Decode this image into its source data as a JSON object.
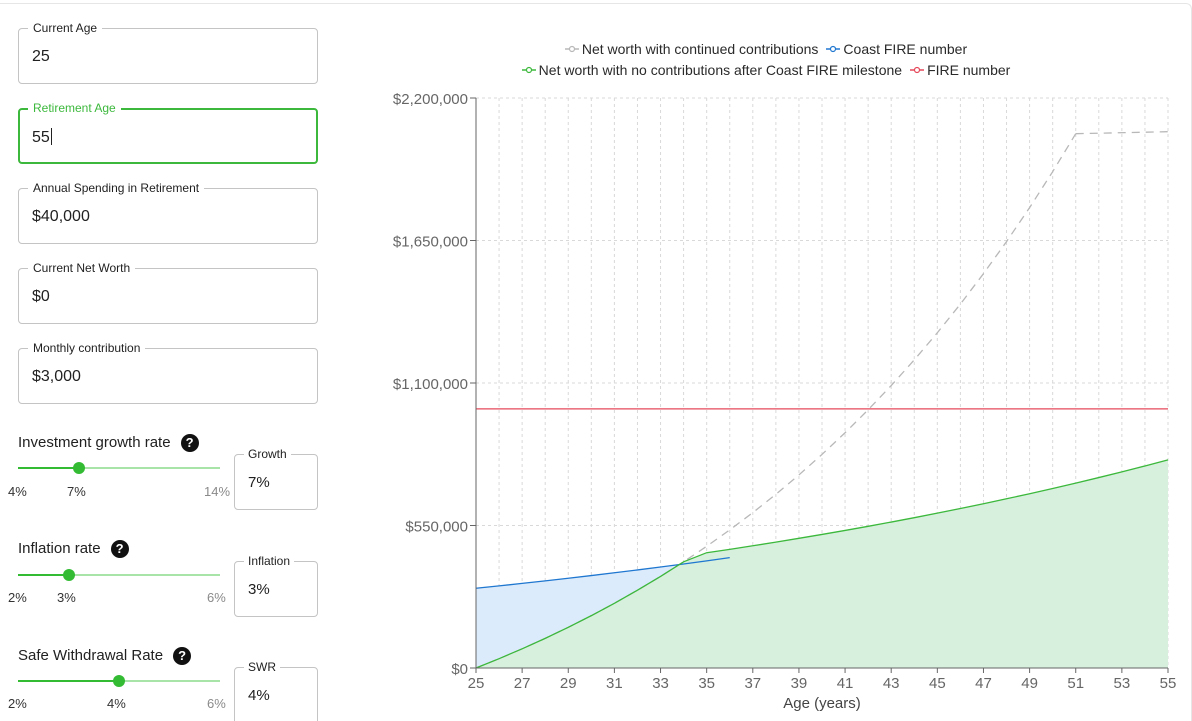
{
  "fields": {
    "current_age": {
      "label": "Current Age",
      "value": "25"
    },
    "retirement_age": {
      "label": "Retirement Age",
      "value": "55"
    },
    "annual_spending": {
      "label": "Annual Spending in Retirement",
      "value": "$40,000"
    },
    "net_worth": {
      "label": "Current Net Worth",
      "value": "$0"
    },
    "monthly_contribution": {
      "label": "Monthly contribution",
      "value": "$3,000"
    }
  },
  "sliders": {
    "growth": {
      "title": "Investment growth rate",
      "min_label": "4%",
      "value_label": "7%",
      "max_label": "14%",
      "min": 4,
      "max": 14,
      "value": 7,
      "field_label": "Growth",
      "field_value": "7%"
    },
    "inflation": {
      "title": "Inflation rate",
      "min_label": "2%",
      "value_label": "3%",
      "max_label": "6%",
      "min": 2,
      "max": 6,
      "value": 3,
      "field_label": "Inflation",
      "field_value": "3%"
    },
    "swr": {
      "title": "Safe Withdrawal Rate",
      "min_label": "2%",
      "value_label": "4%",
      "max_label": "6%",
      "min": 2,
      "max": 6,
      "value": 4,
      "field_label": "SWR",
      "field_value": "4%"
    }
  },
  "help_glyph": "?",
  "chart_data": {
    "type": "line",
    "title": "",
    "xlabel": "Age (years)",
    "ylabel": "",
    "xlim": [
      25,
      55
    ],
    "ylim": [
      0,
      2200000
    ],
    "x_ticks": [
      "25",
      "27",
      "29",
      "31",
      "33",
      "35",
      "37",
      "39",
      "41",
      "43",
      "45",
      "47",
      "49",
      "51",
      "53",
      "55"
    ],
    "y_ticks": [
      "$0",
      "$550,000",
      "$1,100,000",
      "$1,650,000",
      "$2,200,000"
    ],
    "grid": true,
    "legend_placement": "top-center",
    "x": [
      25,
      26,
      27,
      28,
      29,
      30,
      31,
      32,
      33,
      34,
      35,
      36,
      37,
      38,
      39,
      40,
      41,
      42,
      43,
      44,
      45,
      46,
      47,
      48,
      49,
      50,
      51,
      52,
      53,
      54,
      55
    ],
    "series": [
      {
        "name": "Net worth with continued contributions",
        "color": "#b8b8b8",
        "style": "dashed",
        "values": [
          0,
          36000,
          74100,
          114400,
          157000,
          202100,
          249800,
          300200,
          353500,
          410000,
          469700,
          532900,
          599700,
          670400,
          745200,
          824300,
          908000,
          996500,
          1090100,
          1189200,
          1293900,
          1404700,
          1521900,
          1645800,
          1776900,
          1915600,
          2062200,
          null,
          null,
          null,
          null
        ]
      },
      {
        "name": "Coast FIRE number",
        "color": "#1f77d0",
        "style": "solid",
        "values": [
          307700,
          317000,
          326500,
          336300,
          346400,
          356800,
          367500,
          378500,
          389800,
          401500,
          413600,
          425900,
          null,
          null,
          null,
          null,
          null,
          null,
          null,
          null,
          null,
          null,
          null,
          null,
          null,
          null,
          null,
          null,
          null,
          null,
          null
        ]
      },
      {
        "name": "Net worth with no contributions after Coast FIRE milestone",
        "color": "#3cb83c",
        "style": "solid",
        "fill": "#d6f0dd",
        "values": [
          0,
          36000,
          74100,
          114400,
          157000,
          202100,
          249800,
          300200,
          353500,
          410000,
          445000,
          458000,
          471700,
          485900,
          500500,
          515500,
          531000,
          546900,
          563300,
          580200,
          597600,
          615600,
          634000,
          653100,
          672700,
          692800,
          713600,
          735000,
          757100,
          779800,
          803200
        ]
      },
      {
        "name": "FIRE number",
        "color": "#e5485a",
        "style": "solid",
        "values": [
          1000000,
          1000000,
          1000000,
          1000000,
          1000000,
          1000000,
          1000000,
          1000000,
          1000000,
          1000000,
          1000000,
          1000000,
          1000000,
          1000000,
          1000000,
          1000000,
          1000000,
          1000000,
          1000000,
          1000000,
          1000000,
          1000000,
          1000000,
          1000000,
          1000000,
          1000000,
          1000000,
          1000000,
          1000000,
          1000000,
          1000000
        ]
      }
    ],
    "coast_fill_color": "#dcebfb"
  }
}
